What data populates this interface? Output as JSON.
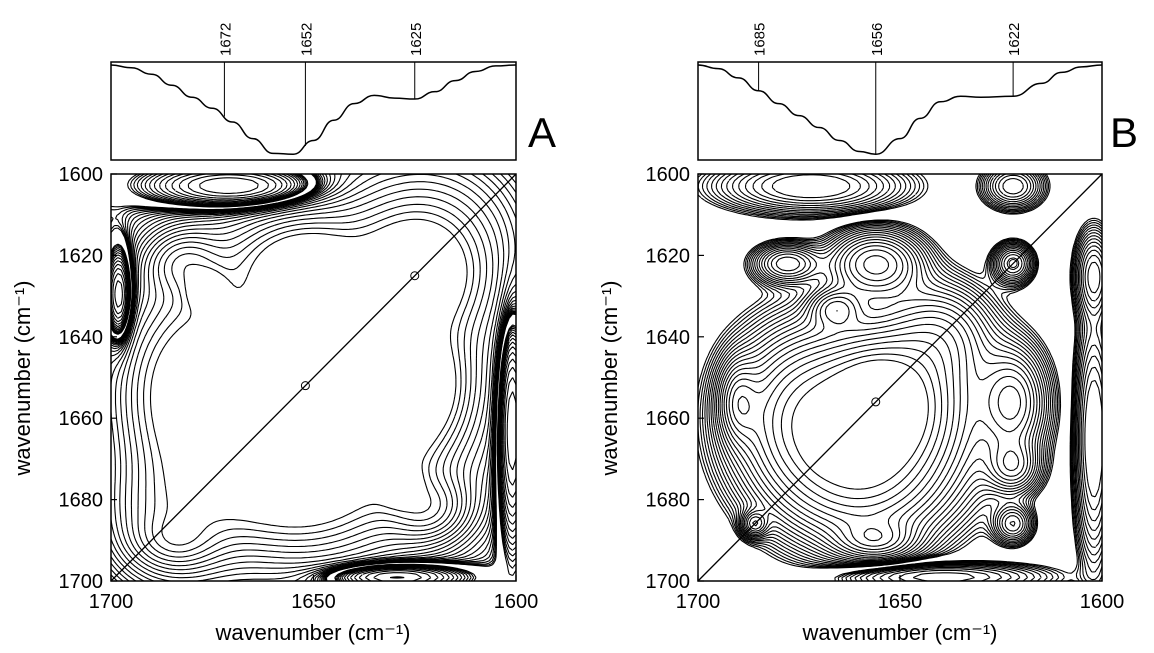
{
  "chart_data": [
    {
      "type": "contour",
      "panel_label": "A",
      "xlabel": "wavenumber (cm⁻¹)",
      "ylabel": "wavenumber (cm⁻¹)",
      "xlim": [
        1700,
        1600
      ],
      "ylim": [
        1600,
        1700
      ],
      "x_ticks": [
        1700,
        1650,
        1600
      ],
      "y_ticks": [
        1600,
        1620,
        1640,
        1660,
        1680,
        1700
      ],
      "top_spectrum_marked_peaks": [
        "1672",
        "1652",
        "1625"
      ],
      "top_spectrum": {
        "x": [
          1700,
          1695,
          1690,
          1685,
          1680,
          1675,
          1670,
          1665,
          1660,
          1655,
          1650,
          1645,
          1640,
          1635,
          1630,
          1625,
          1620,
          1615,
          1610,
          1605,
          1600
        ],
        "y": [
          0.0,
          0.03,
          0.1,
          0.22,
          0.35,
          0.47,
          0.62,
          0.8,
          0.96,
          0.97,
          0.82,
          0.6,
          0.42,
          0.33,
          0.36,
          0.37,
          0.29,
          0.17,
          0.07,
          0.01,
          0.0
        ]
      },
      "diagonal_peaks": [
        [
          1652,
          1652
        ],
        [
          1625,
          1625
        ]
      ],
      "negative_regions": [
        "top-left",
        "left-edge",
        "right-edge",
        "bottom-edge"
      ]
    },
    {
      "type": "contour",
      "panel_label": "B",
      "xlabel": "wavenumber (cm⁻¹)",
      "ylabel": "wavenumber (cm⁻¹)",
      "xlim": [
        1700,
        1600
      ],
      "ylim": [
        1600,
        1700
      ],
      "x_ticks": [
        1700,
        1650,
        1600
      ],
      "y_ticks": [
        1600,
        1620,
        1640,
        1660,
        1680,
        1700
      ],
      "top_spectrum_marked_peaks": [
        "1685",
        "1656",
        "1622"
      ],
      "top_spectrum": {
        "x": [
          1700,
          1695,
          1690,
          1685,
          1680,
          1675,
          1670,
          1665,
          1660,
          1656,
          1650,
          1645,
          1640,
          1635,
          1630,
          1622,
          1615,
          1610,
          1605,
          1600
        ],
        "y": [
          0.0,
          0.04,
          0.14,
          0.28,
          0.42,
          0.55,
          0.68,
          0.82,
          0.94,
          0.97,
          0.8,
          0.58,
          0.4,
          0.34,
          0.35,
          0.34,
          0.2,
          0.08,
          0.02,
          0.0
        ]
      },
      "diagonal_peaks": [
        [
          1656,
          1656
        ],
        [
          1622,
          1622
        ]
      ],
      "negative_regions": [
        "top-left",
        "top-center",
        "right-edge",
        "bottom-edge"
      ]
    }
  ]
}
